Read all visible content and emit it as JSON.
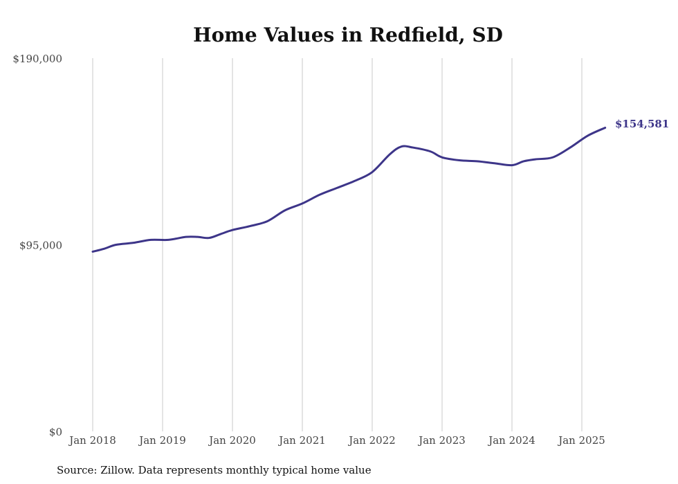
{
  "chart_data": {
    "type": "line",
    "title": "Home Values in Redfield, SD",
    "xlabel": "",
    "ylabel": "",
    "ylim": [
      0,
      190000
    ],
    "xlim": [
      "2018-01",
      "2025-05"
    ],
    "y_ticks": [
      "$0",
      "$95,000",
      "$190,000"
    ],
    "y_tick_values": [
      0,
      95000,
      190000
    ],
    "x_ticks": [
      "Jan 2018",
      "Jan 2019",
      "Jan 2020",
      "Jan 2021",
      "Jan 2022",
      "Jan 2023",
      "Jan 2024",
      "Jan 2025"
    ],
    "x_tick_values": [
      "2018-01",
      "2019-01",
      "2020-01",
      "2021-01",
      "2022-01",
      "2023-01",
      "2024-01",
      "2025-01"
    ],
    "grid": {
      "vertical": true,
      "horizontal": false
    },
    "legend": "none",
    "series": [
      {
        "color": "#3d3589",
        "x": [
          "2018-01",
          "2018-03",
          "2018-05",
          "2018-08",
          "2018-11",
          "2019-02",
          "2019-05",
          "2019-07",
          "2019-09",
          "2019-11",
          "2020-01",
          "2020-04",
          "2020-07",
          "2020-10",
          "2021-01",
          "2021-04",
          "2021-07",
          "2021-10",
          "2022-01",
          "2022-04",
          "2022-06",
          "2022-08",
          "2022-11",
          "2023-01",
          "2023-04",
          "2023-07",
          "2023-10",
          "2024-01",
          "2024-03",
          "2024-05",
          "2024-08",
          "2024-11",
          "2025-02",
          "2025-05"
        ],
        "y": [
          91500,
          93000,
          95000,
          96000,
          97500,
          97500,
          99000,
          99000,
          98500,
          100500,
          102500,
          104500,
          107000,
          112500,
          116000,
          120500,
          124000,
          127500,
          132000,
          141000,
          145000,
          144500,
          142500,
          139500,
          138000,
          137500,
          136500,
          135500,
          137500,
          138500,
          139500,
          144500,
          150500,
          154581
        ]
      }
    ],
    "end_label": "$154,581",
    "source": "Source: Zillow. Data represents monthly typical home value"
  }
}
